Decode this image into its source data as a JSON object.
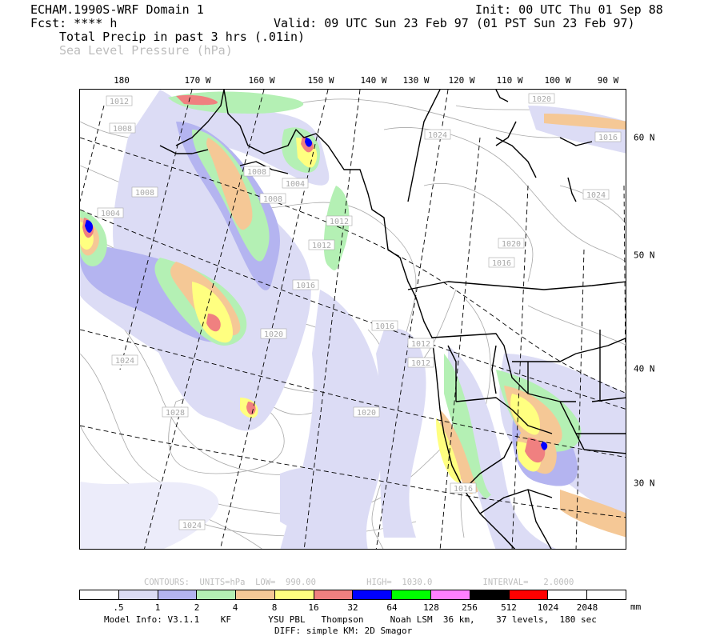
{
  "header": {
    "model": "ECHAM.1990S-WRF Domain 1",
    "fcst": "Fcst: **** h",
    "init": "Init: 00 UTC Thu 01 Sep 88",
    "valid": "Valid: 09 UTC Sun 23 Feb 97 (01 PST Sun 23 Feb 97)",
    "field": "Total Precip in past 3 hrs (.01in)",
    "overlay": "Sea Level Pressure (hPa)"
  },
  "lon_labels": [
    "180",
    "170 W",
    "160 W",
    "150 W",
    "140 W",
    "130 W",
    "120 W",
    "110 W",
    "100 W",
    "90 W"
  ],
  "lat_labels": [
    "60 N",
    "50 N",
    "40 N",
    "30 N"
  ],
  "pressure_labels": [
    "1012",
    "1008",
    "1008",
    "1004",
    "1008",
    "1004",
    "1008",
    "1012",
    "1012",
    "1016",
    "1020",
    "1024",
    "1028",
    "1024",
    "1016",
    "1012",
    "1012",
    "1020",
    "1016",
    "1024",
    "1020",
    "1016",
    "1024",
    "1016",
    "1020"
  ],
  "contours": {
    "text": "CONTOURS:  UNITS=hPa  LOW=  990.00          HIGH=  1030.0          INTERVAL=   2.0000"
  },
  "legend": {
    "colors": [
      "#ffffff",
      "#dcdcf5",
      "#b4b4f0",
      "#b4f0b4",
      "#f5c896",
      "#ffff80",
      "#f08080",
      "#0000ff",
      "#00ff00",
      "#ff80ff",
      "#000000",
      "#ff0000",
      "#ffffff",
      "#ffffff"
    ],
    "ticks": [
      ".5",
      "1",
      "2",
      "4",
      "8",
      "16",
      "32",
      "64",
      "128",
      "256",
      "512",
      "1024",
      "2048"
    ],
    "units": "mm"
  },
  "footer": {
    "line1": "Model Info: V3.1.1    KF       YSU PBL   Thompson     Noah LSM  36 km,    37 levels,  180 sec",
    "line2": "DIFF: simple KM: 2D Smagor"
  }
}
